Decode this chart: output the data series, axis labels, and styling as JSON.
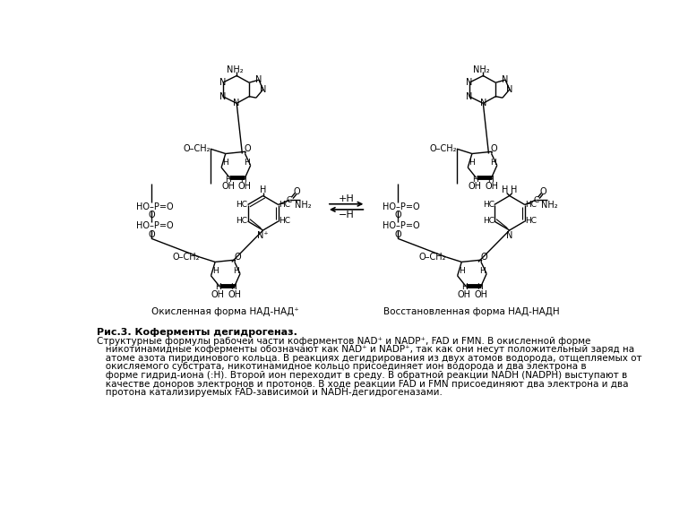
{
  "title_bold": "Рис.3. Коферменты дегидрогеназ.",
  "caption_lines": [
    "Структурные формулы рабочей части коферментов NAD⁺ и NADP⁺, FAD и FMN. В окисленной форме",
    "   никотинамидные коферменты обозначают как NAD⁺ и NADP⁺, так как они несут положительный заряд на",
    "   атоме азота пиридинового кольца. В реакциях дегидрирования из двух атомов водорода, отщепляемых от",
    "   окисляемого субстрата, никотинамидное кольцо присоединяет ион водорода и два электрона в",
    "   форме гидрид-иона (:H). Второй ион переходит в среду. В обратной реакции NADH (NADPH) выступают в",
    "   качестве доноров электронов и протонов. В ходе реакции FAD и FMN присоединяют два электрона и два",
    "   протона катализируемых FAD-зависимой и NADH-дегидрогеназами."
  ],
  "label_left": "Окисленная форма НАД-НАД⁺",
  "label_right": "Восстановленная форма НАД-НАДН",
  "bg_color": "#ffffff",
  "text_color": "#000000",
  "fig_width": 7.68,
  "fig_height": 5.76,
  "dpi": 100
}
